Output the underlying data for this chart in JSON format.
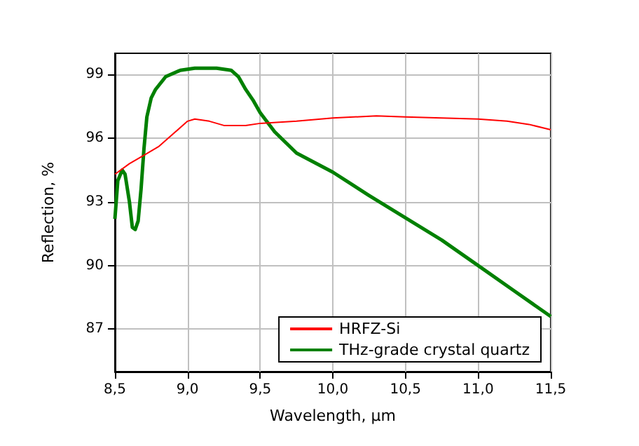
{
  "chart_data": {
    "type": "line",
    "xlabel": "Wavelength, μm",
    "ylabel": "Reflection, %",
    "xlim": [
      8.5,
      11.5
    ],
    "ylim": [
      85,
      100
    ],
    "xticks": [
      {
        "value": 8.5,
        "label": "8,5"
      },
      {
        "value": 9,
        "label": "9,0"
      },
      {
        "value": 9.5,
        "label": "9,5"
      },
      {
        "value": 10,
        "label": "10,0"
      },
      {
        "value": 10.5,
        "label": "10,5"
      },
      {
        "value": 11,
        "label": "11,0"
      },
      {
        "value": 11.5,
        "label": "11,5"
      }
    ],
    "yticks": [
      87,
      90,
      93,
      96,
      99
    ],
    "grid": true,
    "legend": "bottom right",
    "marker": "none",
    "line_style": "solid",
    "series": [
      {
        "name": "HRFZ-Si",
        "color": "#ff0000",
        "x": [
          8.5,
          8.6,
          8.7,
          8.8,
          8.9,
          9.0,
          9.05,
          9.15,
          9.25,
          9.4,
          9.5,
          9.75,
          10.0,
          10.3,
          10.5,
          10.75,
          11.0,
          11.2,
          11.35,
          11.5
        ],
        "values": [
          94.3,
          94.8,
          95.2,
          95.6,
          96.2,
          96.8,
          96.9,
          96.8,
          96.6,
          96.6,
          96.7,
          96.8,
          96.95,
          97.05,
          97.0,
          96.95,
          96.9,
          96.8,
          96.65,
          96.4
        ]
      },
      {
        "name": "THz-grade crystal quartz",
        "color": "#008000",
        "x": [
          8.5,
          8.52,
          8.55,
          8.57,
          8.6,
          8.62,
          8.64,
          8.66,
          8.68,
          8.7,
          8.72,
          8.75,
          8.78,
          8.85,
          8.95,
          9.05,
          9.2,
          9.3,
          9.35,
          9.4,
          9.45,
          9.5,
          9.6,
          9.75,
          10.0,
          10.25,
          10.5,
          10.75,
          11.0,
          11.25,
          11.5
        ],
        "values": [
          92.2,
          94.0,
          94.5,
          94.3,
          93.0,
          91.8,
          91.7,
          92.1,
          93.6,
          95.5,
          97.0,
          97.9,
          98.3,
          98.9,
          99.2,
          99.3,
          99.3,
          99.2,
          98.9,
          98.3,
          97.8,
          97.2,
          96.3,
          95.3,
          94.4,
          93.3,
          92.25,
          91.2,
          90.0,
          88.8,
          87.6
        ]
      }
    ]
  }
}
